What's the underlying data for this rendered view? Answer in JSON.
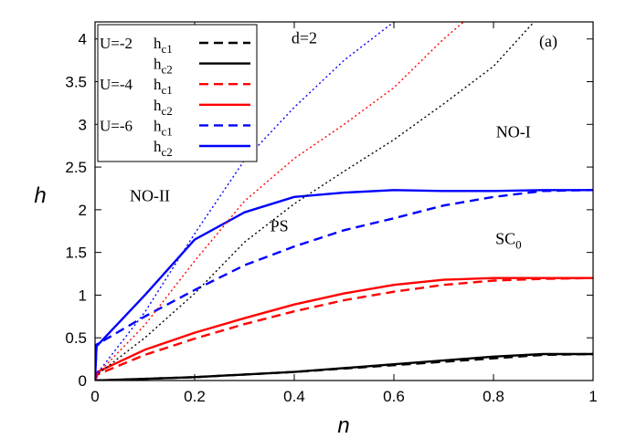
{
  "chart_data": {
    "type": "line",
    "xlabel": "n",
    "ylabel": "h",
    "xlim": [
      0,
      1
    ],
    "ylim": [
      0,
      4.2
    ],
    "xticks": [
      0,
      0.2,
      0.4,
      0.6,
      0.8,
      1
    ],
    "xtick_labels": [
      "0",
      "0.2",
      "0.4",
      "0.6",
      "0.8",
      "1"
    ],
    "yticks": [
      0,
      0.5,
      1,
      1.5,
      2,
      2.5,
      3,
      3.5,
      4
    ],
    "ytick_labels": [
      "0",
      "0.5",
      "1",
      "1.5",
      "2",
      "2.5",
      "3",
      "3.5",
      "4"
    ],
    "grid": false,
    "legend_position": "top-left",
    "panel_label": "(a)",
    "annotations": [
      {
        "text": "d=2",
        "x": 0.42,
        "y": 3.95
      },
      {
        "text": "NO-I",
        "x": 0.84,
        "y": 2.85
      },
      {
        "text": "NO-II",
        "x": 0.11,
        "y": 2.1
      },
      {
        "text": "PS",
        "x": 0.37,
        "y": 1.75
      },
      {
        "text": "SC",
        "sub": "0",
        "x": 0.83,
        "y": 1.6
      }
    ],
    "legend_groups": [
      {
        "label": "U=-2",
        "color": "#000000",
        "items": [
          {
            "name": "h",
            "sub": "c1",
            "dash": true
          },
          {
            "name": "h",
            "sub": "c2",
            "dash": false
          }
        ]
      },
      {
        "label": "U=-4",
        "color": "#ff0000",
        "items": [
          {
            "name": "h",
            "sub": "c1",
            "dash": true
          },
          {
            "name": "h",
            "sub": "c2",
            "dash": false
          }
        ]
      },
      {
        "label": "U=-6",
        "color": "#0000ff",
        "items": [
          {
            "name": "h",
            "sub": "c1",
            "dash": true
          },
          {
            "name": "h",
            "sub": "c2",
            "dash": false
          }
        ]
      }
    ],
    "series": [
      {
        "color": "#000000",
        "style": "dashed",
        "x": [
          0,
          0.2,
          0.4,
          0.6,
          0.8,
          0.9,
          1
        ],
        "y": [
          0,
          0.04,
          0.1,
          0.18,
          0.26,
          0.3,
          0.31
        ]
      },
      {
        "color": "#000000",
        "style": "solid",
        "x": [
          0,
          0.2,
          0.4,
          0.6,
          0.8,
          0.9,
          1
        ],
        "y": [
          0,
          0.04,
          0.1,
          0.19,
          0.28,
          0.31,
          0.31
        ]
      },
      {
        "color": "#ff0000",
        "style": "dashed",
        "x": [
          0,
          0.005,
          0.1,
          0.2,
          0.3,
          0.4,
          0.5,
          0.6,
          0.7,
          0.8,
          0.9,
          1
        ],
        "y": [
          0,
          0.07,
          0.3,
          0.49,
          0.66,
          0.81,
          0.94,
          1.04,
          1.12,
          1.17,
          1.19,
          1.2
        ]
      },
      {
        "color": "#ff0000",
        "style": "solid",
        "x": [
          0,
          0.005,
          0.1,
          0.2,
          0.3,
          0.4,
          0.5,
          0.6,
          0.7,
          0.8,
          0.9,
          1
        ],
        "y": [
          0,
          0.1,
          0.36,
          0.56,
          0.73,
          0.89,
          1.02,
          1.12,
          1.18,
          1.2,
          1.2,
          1.2
        ]
      },
      {
        "color": "#0000ff",
        "style": "dashed",
        "x": [
          0,
          0.003,
          0.1,
          0.2,
          0.3,
          0.4,
          0.5,
          0.6,
          0.7,
          0.8,
          0.9,
          1
        ],
        "y": [
          0,
          0.42,
          0.75,
          1.06,
          1.35,
          1.57,
          1.76,
          1.9,
          2.05,
          2.15,
          2.22,
          2.23
        ]
      },
      {
        "color": "#0000ff",
        "style": "solid",
        "x": [
          0,
          0.003,
          0.1,
          0.2,
          0.3,
          0.4,
          0.5,
          0.6,
          0.7,
          0.8,
          0.9,
          1
        ],
        "y": [
          0,
          0.4,
          1.0,
          1.65,
          1.97,
          2.15,
          2.2,
          2.23,
          2.22,
          2.22,
          2.23,
          2.23
        ]
      },
      {
        "color": "#000000",
        "style": "dotted",
        "x": [
          0,
          0.1,
          0.2,
          0.3,
          0.4,
          0.5,
          0.6,
          0.7,
          0.8,
          0.9,
          0.875
        ],
        "y": [
          0.05,
          0.5,
          1.02,
          1.62,
          2.07,
          2.45,
          2.82,
          3.24,
          3.68,
          4.32,
          4.2
        ]
      },
      {
        "color": "#ff0000",
        "style": "dotted",
        "x": [
          0,
          0.1,
          0.2,
          0.3,
          0.4,
          0.5,
          0.6,
          0.7,
          0.74
        ],
        "y": [
          0.05,
          0.65,
          1.4,
          2.1,
          2.6,
          3.0,
          3.43,
          4.0,
          4.2
        ]
      },
      {
        "color": "#0000ff",
        "style": "dotted",
        "x": [
          0,
          0.1,
          0.2,
          0.3,
          0.4,
          0.5,
          0.6
        ],
        "y": [
          0.05,
          0.8,
          1.72,
          2.58,
          3.2,
          3.75,
          4.2
        ]
      }
    ]
  }
}
